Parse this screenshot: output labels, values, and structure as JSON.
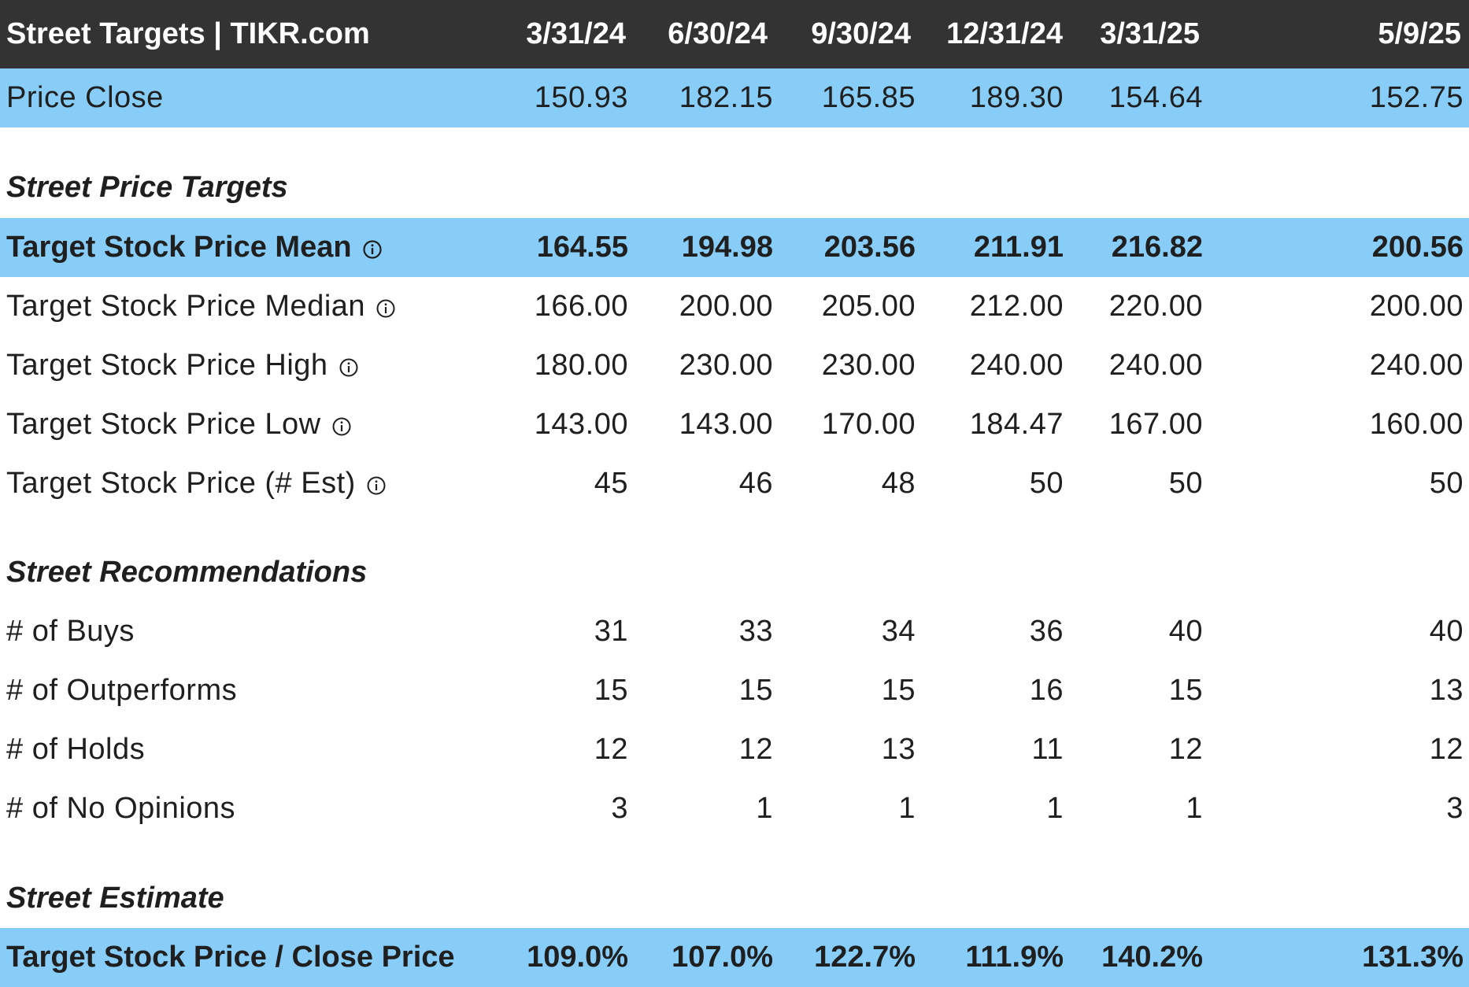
{
  "header": {
    "title": "Street Targets | TIKR.com",
    "dates": [
      "3/31/24",
      "6/30/24",
      "9/30/24",
      "12/31/24",
      "3/31/25",
      "5/9/25"
    ]
  },
  "price_close": {
    "label": "Price Close",
    "values": [
      "150.93",
      "182.15",
      "165.85",
      "189.30",
      "154.64",
      "152.75"
    ]
  },
  "sections": {
    "price_targets": "Street Price Targets",
    "recommendations": "Street Recommendations",
    "estimate": "Street Estimate"
  },
  "target_mean": {
    "label": "Target Stock Price Mean",
    "values": [
      "164.55",
      "194.98",
      "203.56",
      "211.91",
      "216.82",
      "200.56"
    ]
  },
  "target_median": {
    "label": "Target Stock Price Median",
    "values": [
      "166.00",
      "200.00",
      "205.00",
      "212.00",
      "220.00",
      "200.00"
    ]
  },
  "target_high": {
    "label": "Target Stock Price High",
    "values": [
      "180.00",
      "230.00",
      "230.00",
      "240.00",
      "240.00",
      "240.00"
    ]
  },
  "target_low": {
    "label": "Target Stock Price Low",
    "values": [
      "143.00",
      "143.00",
      "170.00",
      "184.47",
      "167.00",
      "160.00"
    ]
  },
  "target_est": {
    "label": "Target Stock Price (# Est)",
    "values": [
      "45",
      "46",
      "48",
      "50",
      "50",
      "50"
    ]
  },
  "buys": {
    "label": "# of Buys",
    "values": [
      "31",
      "33",
      "34",
      "36",
      "40",
      "40"
    ]
  },
  "outperforms": {
    "label": "# of Outperforms",
    "values": [
      "15",
      "15",
      "15",
      "16",
      "15",
      "13"
    ]
  },
  "holds": {
    "label": "# of Holds",
    "values": [
      "12",
      "12",
      "13",
      "11",
      "12",
      "12"
    ]
  },
  "no_opinions": {
    "label": "# of No Opinions",
    "values": [
      "3",
      "1",
      "1",
      "1",
      "1",
      "3"
    ]
  },
  "target_close_ratio": {
    "label": "Target Stock Price / Close Price",
    "values": [
      "109.0%",
      "107.0%",
      "122.7%",
      "111.9%",
      "140.2%",
      "131.3%"
    ]
  },
  "colors": {
    "header_bg": "#333333",
    "highlight_bg": "#87cdf8",
    "text": "#1f1f1f"
  },
  "icons": {
    "info": "info-icon"
  }
}
